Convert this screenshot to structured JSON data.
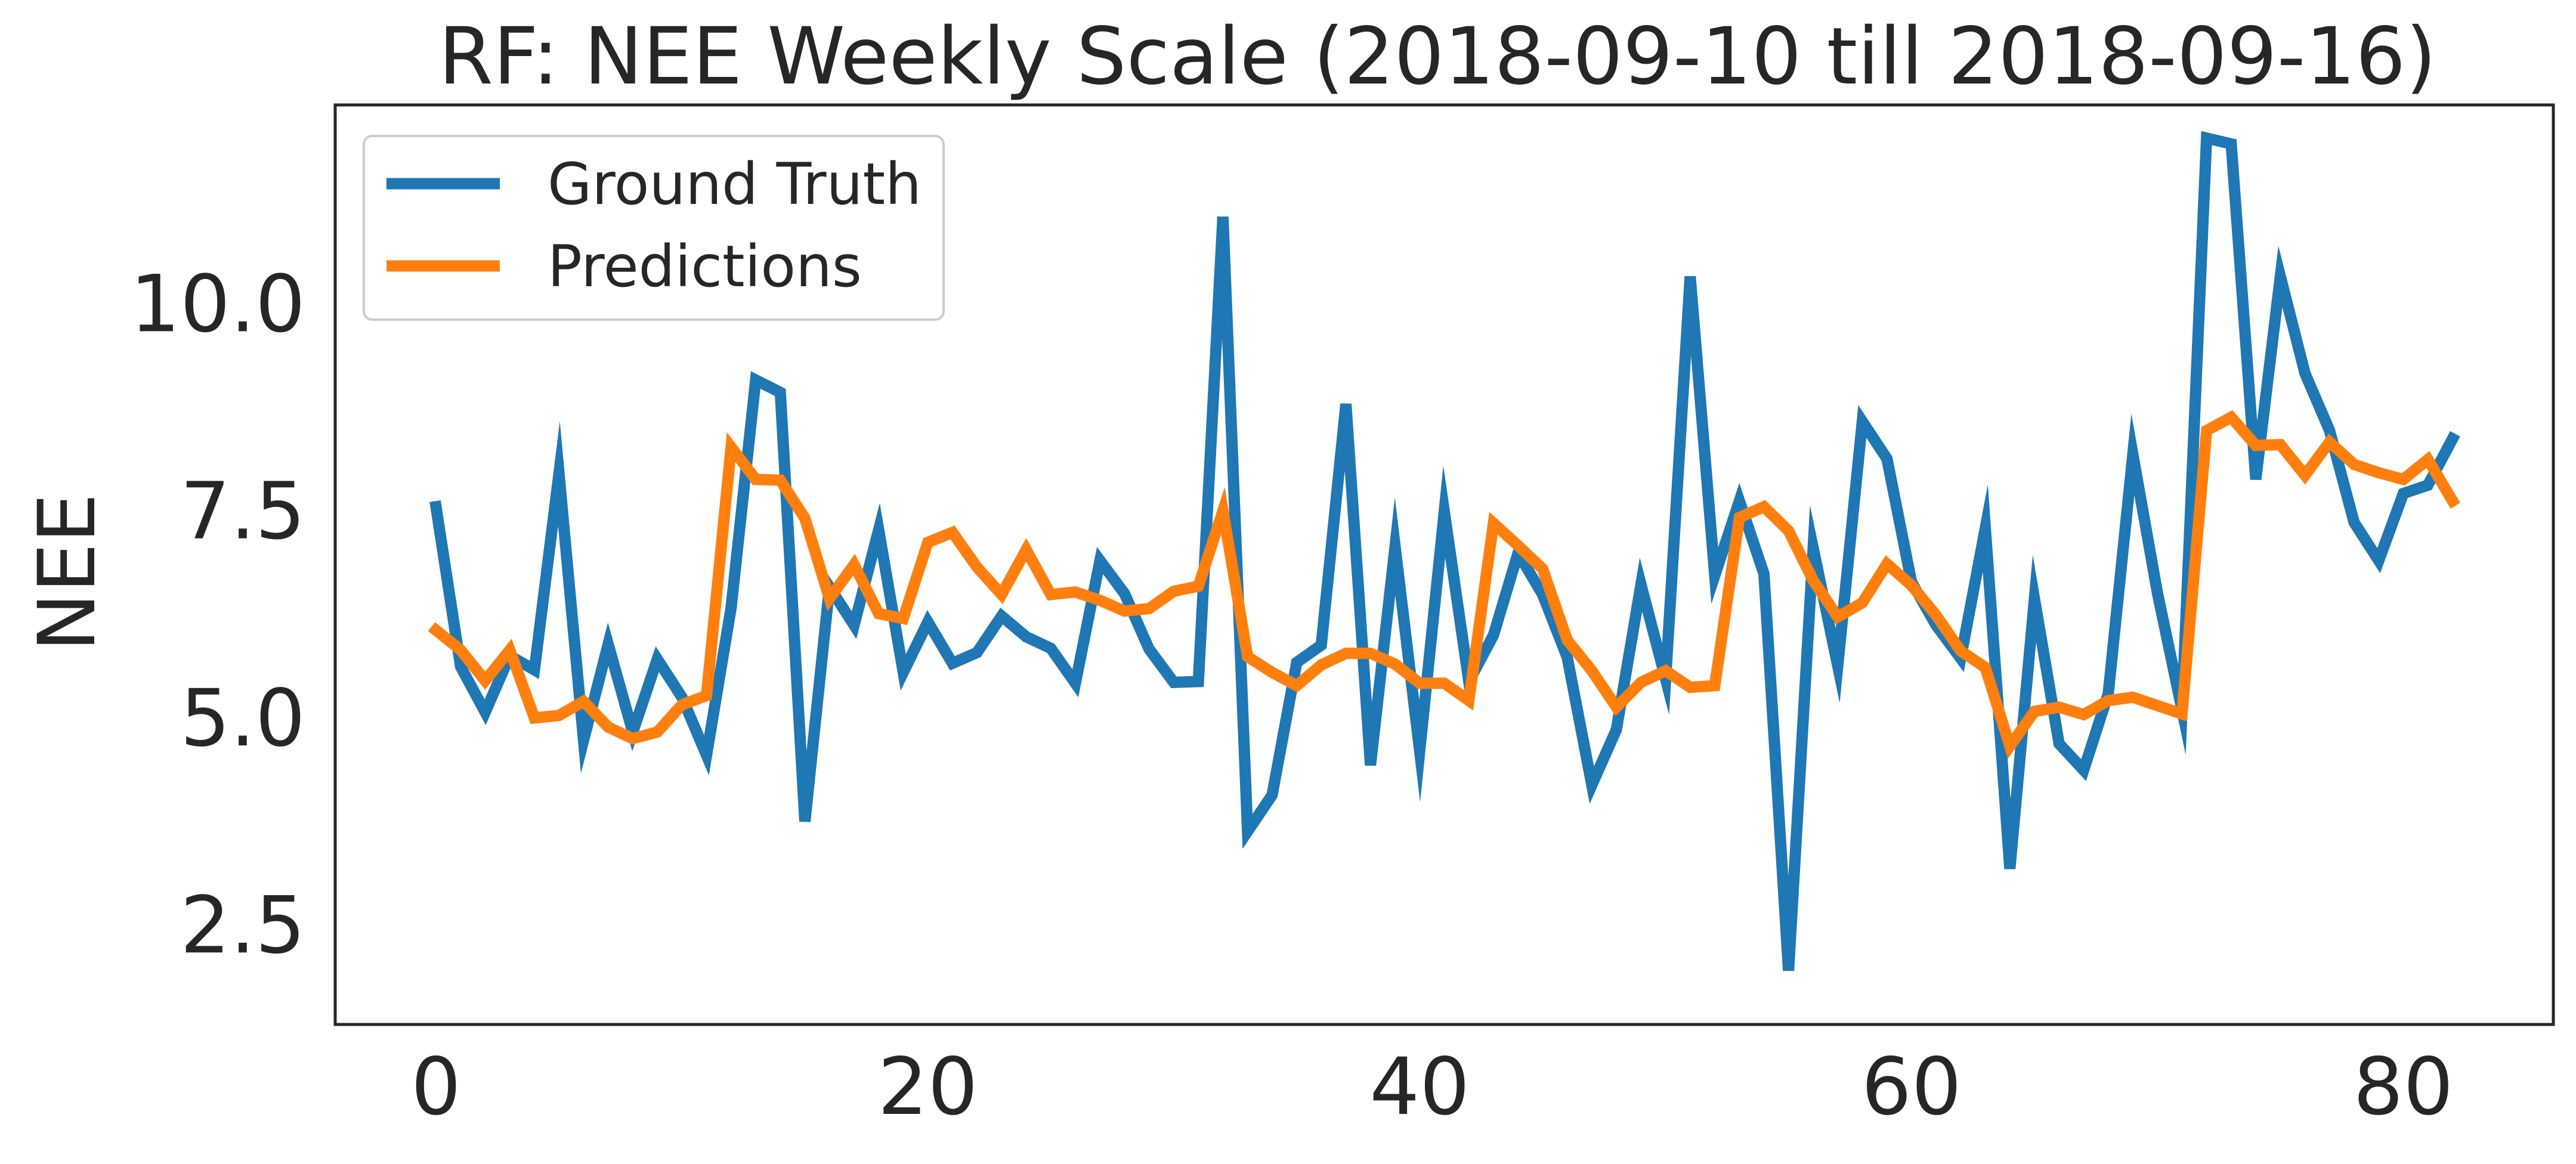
{
  "chart_data": {
    "type": "line",
    "title": "RF: NEE Weekly Scale (2018-09-10 till 2018-09-16)",
    "xlabel": "",
    "ylabel": "NEE",
    "xlim": [
      -4.1,
      86.1
    ],
    "ylim": [
      1.3,
      12.4
    ],
    "xticks": [
      0,
      20,
      40,
      60,
      80
    ],
    "xtick_labels": [
      "0",
      "20",
      "40",
      "60",
      "80"
    ],
    "yticks": [
      2.5,
      5.0,
      7.5,
      10.0
    ],
    "ytick_labels": [
      "2.5",
      "5.0",
      "7.5",
      "10.0"
    ],
    "grid": false,
    "legend": "upper-left",
    "series": [
      {
        "name": "Ground Truth",
        "color": "#1f77b4",
        "values": [
          7.55,
          5.62,
          5.07,
          5.75,
          5.58,
          7.95,
          4.73,
          5.89,
          4.83,
          5.71,
          5.25,
          4.55,
          6.33,
          9.08,
          8.93,
          3.75,
          6.58,
          6.12,
          7.27,
          5.55,
          6.16,
          5.66,
          5.79,
          6.23,
          5.98,
          5.84,
          5.42,
          6.9,
          6.5,
          5.83,
          5.43,
          5.44,
          11.05,
          3.63,
          4.07,
          5.67,
          5.88,
          8.79,
          4.43,
          7.07,
          4.6,
          7.49,
          5.44,
          6.0,
          6.99,
          6.49,
          5.73,
          4.19,
          4.86,
          6.61,
          5.47,
          10.33,
          6.72,
          7.62,
          6.74,
          1.95,
          7.05,
          5.63,
          8.58,
          8.13,
          6.64,
          6.12,
          5.72,
          7.29,
          3.18,
          6.44,
          4.69,
          4.37,
          5.29,
          8.18,
          6.51,
          5.1,
          12.0,
          11.93,
          7.88,
          10.33,
          9.16,
          8.47,
          7.36,
          6.9,
          7.71,
          7.81,
          8.37
        ]
      },
      {
        "name": "Predictions",
        "color": "#ff7f0e",
        "values": [
          6.06,
          5.82,
          5.45,
          5.82,
          5.0,
          5.03,
          5.2,
          4.89,
          4.75,
          4.83,
          5.16,
          5.27,
          8.27,
          7.88,
          7.87,
          7.41,
          6.44,
          6.85,
          6.26,
          6.2,
          7.12,
          7.24,
          6.82,
          6.49,
          7.03,
          6.49,
          6.52,
          6.42,
          6.29,
          6.32,
          6.53,
          6.59,
          7.5,
          5.74,
          5.55,
          5.39,
          5.64,
          5.78,
          5.78,
          5.65,
          5.42,
          5.42,
          5.21,
          7.35,
          7.08,
          6.8,
          5.94,
          5.57,
          5.13,
          5.43,
          5.57,
          5.37,
          5.39,
          7.42,
          7.55,
          7.26,
          6.66,
          6.22,
          6.39,
          6.86,
          6.6,
          6.24,
          5.81,
          5.61,
          4.66,
          5.08,
          5.13,
          5.04,
          5.21,
          5.25,
          5.15,
          5.05,
          8.47,
          8.63,
          8.29,
          8.3,
          7.93,
          8.33,
          8.06,
          7.96,
          7.88,
          8.12,
          7.62
        ]
      }
    ]
  }
}
